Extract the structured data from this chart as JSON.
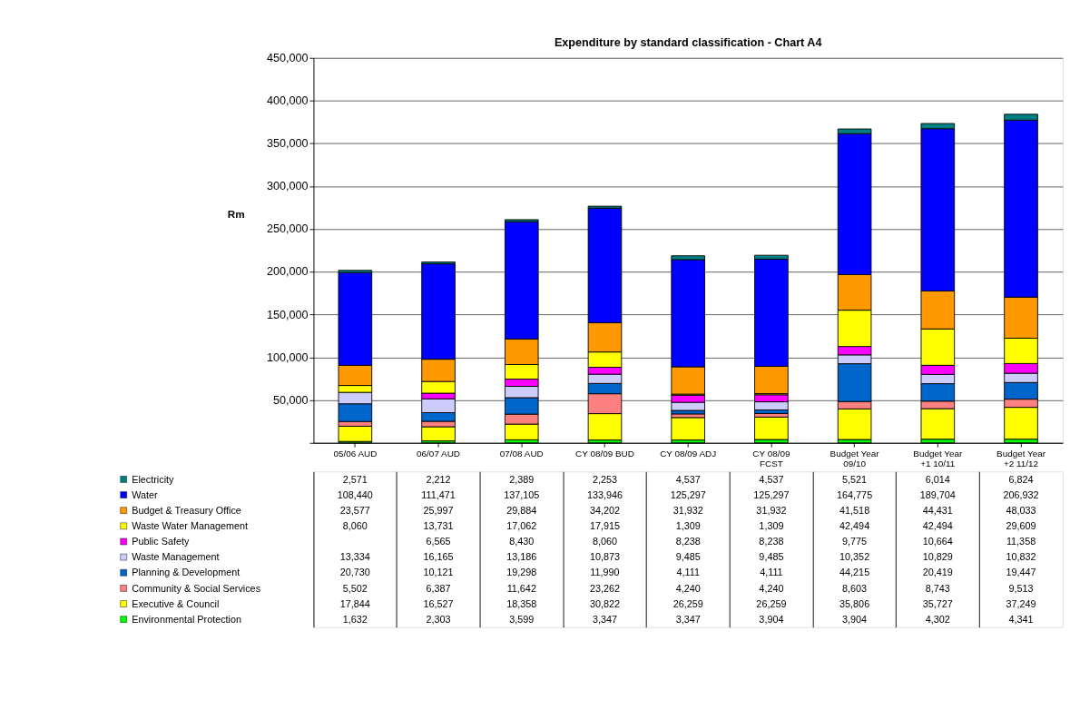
{
  "chart_data": {
    "type": "bar",
    "stacked": true,
    "title": "Expenditure by standard classification - Chart A4",
    "ylabel": "Rm",
    "categories": [
      "05/06 AUD",
      "06/07 AUD",
      "07/08 AUD",
      "CY 08/09 BUD",
      "CY 08/09 ADJ",
      "CY 08/09 FCST",
      "Budget Year 09/10",
      "Budget Year +1 10/11",
      "Budget Year +2 11/12"
    ],
    "ylim": [
      0,
      450000
    ],
    "yticks": [
      {
        "value": 0,
        "label": null
      },
      {
        "value": 50000,
        "label": "50,000"
      },
      {
        "value": 100000,
        "label": "100,000"
      },
      {
        "value": 150000,
        "label": "150,000"
      },
      {
        "value": 200000,
        "label": "200,000"
      },
      {
        "value": 250000,
        "label": "250,000"
      },
      {
        "value": 300000,
        "label": "300,000"
      },
      {
        "value": 350000,
        "label": "350,000"
      },
      {
        "value": 400000,
        "label": "400,000"
      },
      {
        "value": 450000,
        "label": "450,000"
      }
    ],
    "grid": "y",
    "legend": "bottom",
    "series": [
      {
        "name": "Environmental Protection",
        "color": "#00ff00",
        "values": [
          1632,
          2303,
          3599,
          3347,
          3347,
          3904,
          3904,
          4302,
          4341
        ],
        "value_labels": [
          "1,632",
          "2,303",
          "3,599",
          "3,347",
          "3,347",
          "3,904",
          "3,904",
          "4,302",
          "4,341"
        ]
      },
      {
        "name": "Executive & Council",
        "color": "#ffff00",
        "values": [
          17844,
          16527,
          18358,
          30822,
          26259,
          26259,
          35806,
          35727,
          37249
        ],
        "value_labels": [
          "17,844",
          "16,527",
          "18,358",
          "30,822",
          "26,259",
          "26,259",
          "35,806",
          "35,727",
          "37,249"
        ]
      },
      {
        "name": "Community & Social Services",
        "color": "#ff8080",
        "values": [
          5502,
          6387,
          11642,
          23262,
          4240,
          4240,
          8603,
          8743,
          9513
        ],
        "value_labels": [
          "5,502",
          "6,387",
          "11,642",
          "23,262",
          "4,240",
          "4,240",
          "8,603",
          "8,743",
          "9,513"
        ]
      },
      {
        "name": "Planning & Development",
        "color": "#0066cc",
        "values": [
          20730,
          10121,
          19298,
          11990,
          4111,
          4111,
          44215,
          20419,
          19447
        ],
        "value_labels": [
          "20,730",
          "10,121",
          "19,298",
          "11,990",
          "4,111",
          "4,111",
          "44,215",
          "20,419",
          "19,447"
        ]
      },
      {
        "name": "Waste Management",
        "color": "#ccccff",
        "values": [
          13334,
          16165,
          13186,
          10873,
          9485,
          9485,
          10352,
          10829,
          10832
        ],
        "value_labels": [
          "13,334",
          "16,165",
          "13,186",
          "10,873",
          "9,485",
          "9,485",
          "10,352",
          "10,829",
          "10,832"
        ]
      },
      {
        "name": "Public Safety",
        "color": "#ff00ff",
        "values": [
          null,
          6565,
          8430,
          8060,
          8238,
          8238,
          9775,
          10664,
          11358
        ],
        "value_labels": [
          null,
          "6,565",
          "8,430",
          "8,060",
          "8,238",
          "8,238",
          "9,775",
          "10,664",
          "11,358"
        ]
      },
      {
        "name": "Waste Water Management",
        "color": "#ffff00",
        "values": [
          8060,
          13731,
          17062,
          17915,
          1309,
          1309,
          42494,
          42494,
          29609
        ],
        "value_labels": [
          "8,060",
          "13,731",
          "17,062",
          "17,915",
          "1,309",
          "1,309",
          "42,494",
          "42,494",
          "29,609"
        ]
      },
      {
        "name": "Budget & Treasury Office",
        "color": "#ff9900",
        "values": [
          23577,
          25997,
          29884,
          34202,
          31932,
          31932,
          41518,
          44431,
          48033
        ],
        "value_labels": [
          "23,577",
          "25,997",
          "29,884",
          "34,202",
          "31,932",
          "31,932",
          "41,518",
          "44,431",
          "48,033"
        ]
      },
      {
        "name": "Water",
        "color": "#0000ff",
        "values": [
          108440,
          111471,
          137105,
          133946,
          125297,
          125297,
          164775,
          189704,
          206932
        ],
        "value_labels": [
          "108,440",
          "111,471",
          "137,105",
          "133,946",
          "125,297",
          "125,297",
          "164,775",
          "189,704",
          "206,932"
        ]
      },
      {
        "name": "Electricity",
        "color": "#008080",
        "values": [
          2571,
          2212,
          2389,
          2253,
          4537,
          4537,
          5521,
          6014,
          6824
        ],
        "value_labels": [
          "2,571",
          "2,212",
          "2,389",
          "2,253",
          "4,537",
          "4,537",
          "5,521",
          "6,014",
          "6,824"
        ]
      }
    ]
  }
}
